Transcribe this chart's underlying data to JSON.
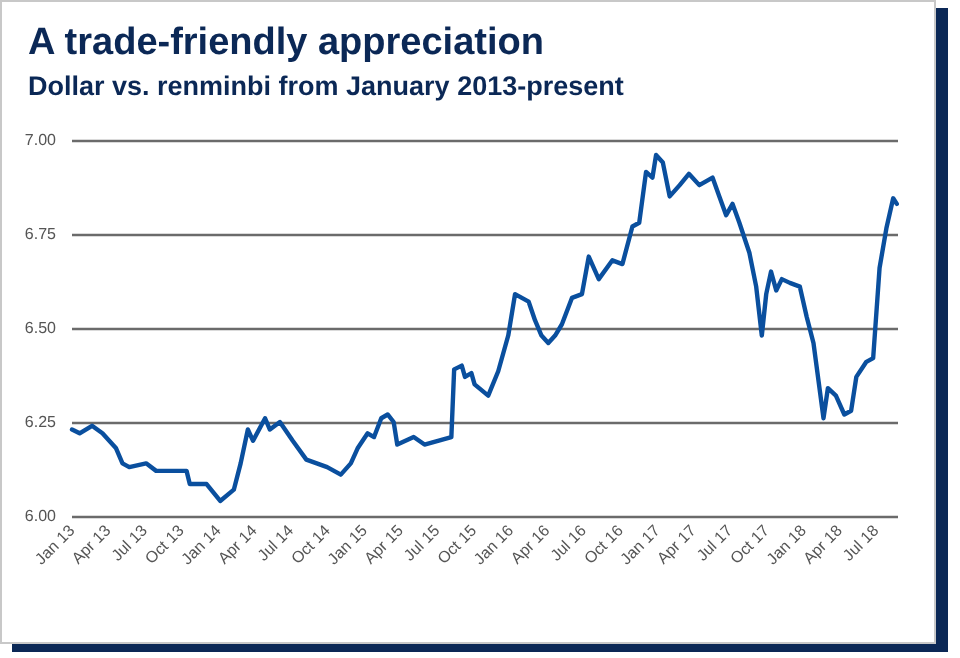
{
  "chart_data": {
    "type": "line",
    "title": "A trade-friendly appreciation",
    "subtitle": "Dollar vs. renminbi from January 2013-present",
    "x": [
      "2013-01-01",
      "2013-01-20",
      "2013-02-20",
      "2013-03-18",
      "2013-04-21",
      "2013-05-07",
      "2013-05-24",
      "2013-07-05",
      "2013-07-30",
      "2013-10-14",
      "2013-10-22",
      "2013-12-03",
      "2014-01-06",
      "2014-02-09",
      "2014-02-26",
      "2014-03-16",
      "2014-03-29",
      "2014-04-28",
      "2014-05-10",
      "2014-06-04",
      "2014-07-06",
      "2014-08-09",
      "2014-09-30",
      "2014-11-03",
      "2014-11-28",
      "2014-12-15",
      "2015-01-09",
      "2015-01-25",
      "2015-02-12",
      "2015-02-28",
      "2015-03-15",
      "2015-03-24",
      "2015-05-04",
      "2015-05-31",
      "2015-08-06",
      "2015-08-13",
      "2015-09-01",
      "2015-09-09",
      "2015-09-25",
      "2015-10-03",
      "2015-11-06",
      "2015-12-01",
      "2015-12-26",
      "2016-01-12",
      "2016-02-15",
      "2016-03-02",
      "2016-03-18",
      "2016-04-04",
      "2016-04-21",
      "2016-05-08",
      "2016-06-02",
      "2016-06-27",
      "2016-07-14",
      "2016-08-08",
      "2016-09-11",
      "2016-10-06",
      "2016-10-31",
      "2016-11-17",
      "2016-12-04",
      "2016-12-20",
      "2016-12-29",
      "2017-01-15",
      "2017-02-01",
      "2017-02-26",
      "2017-03-21",
      "2017-04-16",
      "2017-05-19",
      "2017-06-05",
      "2017-06-22",
      "2017-07-08",
      "2017-07-25",
      "2017-08-19",
      "2017-09-05",
      "2017-09-19",
      "2017-09-30",
      "2017-10-12",
      "2017-10-25",
      "2017-11-08",
      "2017-11-28",
      "2017-12-23",
      "2018-01-09",
      "2018-01-26",
      "2018-02-20",
      "2018-03-03",
      "2018-03-23",
      "2018-04-13",
      "2018-04-30",
      "2018-05-13",
      "2018-06-07",
      "2018-06-24",
      "2018-07-10",
      "2018-07-27",
      "2018-08-13",
      "2018-08-22"
    ],
    "series": [
      {
        "color": "#0a4f9e",
        "values": [
          6.23,
          6.22,
          6.24,
          6.22,
          6.18,
          6.14,
          6.13,
          6.14,
          6.12,
          6.12,
          6.085,
          6.085,
          6.04,
          6.07,
          6.14,
          6.23,
          6.2,
          6.26,
          6.23,
          6.25,
          6.2,
          6.15,
          6.13,
          6.11,
          6.14,
          6.18,
          6.22,
          6.21,
          6.26,
          6.27,
          6.25,
          6.19,
          6.21,
          6.19,
          6.21,
          6.39,
          6.4,
          6.37,
          6.38,
          6.35,
          6.32,
          6.385,
          6.48,
          6.59,
          6.57,
          6.52,
          6.48,
          6.46,
          6.48,
          6.51,
          6.58,
          6.59,
          6.69,
          6.63,
          6.68,
          6.67,
          6.77,
          6.78,
          6.915,
          6.9,
          6.96,
          6.94,
          6.85,
          6.88,
          6.91,
          6.88,
          6.9,
          6.85,
          6.8,
          6.83,
          6.78,
          6.7,
          6.61,
          6.48,
          6.59,
          6.65,
          6.6,
          6.63,
          6.62,
          6.61,
          6.53,
          6.46,
          6.26,
          6.34,
          6.32,
          6.27,
          6.28,
          6.37,
          6.41,
          6.42,
          6.66,
          6.765,
          6.845,
          6.83
        ]
      }
    ],
    "xlim": [
      "2013-01-01",
      "2018-08-25"
    ],
    "xticks": [
      {
        "value": "2013-01-01",
        "label": "Jan 13"
      },
      {
        "value": "2013-04-01",
        "label": "Apr 13"
      },
      {
        "value": "2013-07-01",
        "label": "Jul 13"
      },
      {
        "value": "2013-10-01",
        "label": "Oct 13"
      },
      {
        "value": "2014-01-01",
        "label": "Jan 14"
      },
      {
        "value": "2014-04-01",
        "label": "Apr 14"
      },
      {
        "value": "2014-07-01",
        "label": "Jul 14"
      },
      {
        "value": "2014-10-01",
        "label": "Oct 14"
      },
      {
        "value": "2015-01-01",
        "label": "Jan 15"
      },
      {
        "value": "2015-04-01",
        "label": "Apr 15"
      },
      {
        "value": "2015-07-01",
        "label": "Jul 15"
      },
      {
        "value": "2015-10-01",
        "label": "Oct 15"
      },
      {
        "value": "2016-01-01",
        "label": "Jan 16"
      },
      {
        "value": "2016-04-01",
        "label": "Apr 16"
      },
      {
        "value": "2016-07-01",
        "label": "Jul 16"
      },
      {
        "value": "2016-10-01",
        "label": "Oct 16"
      },
      {
        "value": "2017-01-01",
        "label": "Jan 17"
      },
      {
        "value": "2017-04-01",
        "label": "Apr 17"
      },
      {
        "value": "2017-07-01",
        "label": "Jul 17"
      },
      {
        "value": "2017-10-01",
        "label": "Oct 17"
      },
      {
        "value": "2018-01-01",
        "label": "Jan 18"
      },
      {
        "value": "2018-04-01",
        "label": "Apr 18"
      },
      {
        "value": "2018-07-01",
        "label": "Jul 18"
      }
    ],
    "ylim": [
      6,
      7
    ],
    "yticks": [
      {
        "value": 6,
        "label": "6.00"
      },
      {
        "value": 6.25,
        "label": "6.25"
      },
      {
        "value": 6.5,
        "label": "6.50"
      },
      {
        "value": 6.75,
        "label": "6.75"
      },
      {
        "value": 7,
        "label": "7.00"
      }
    ],
    "grid": "y",
    "marker": "none",
    "line_style": "solid"
  }
}
